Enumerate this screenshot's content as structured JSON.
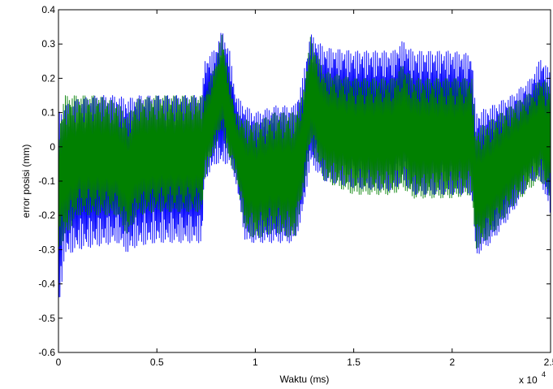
{
  "chart_data": {
    "type": "line",
    "title": "",
    "xlabel": "Waktu (ms)",
    "ylabel": "error posisi (mm)",
    "x_exponent_label": "x 10",
    "x_exponent_power": "4",
    "xlim": [
      0,
      25000
    ],
    "ylim": [
      -0.6,
      0.4
    ],
    "grid": false,
    "legend": "none",
    "x_ticks": [
      0,
      5000,
      10000,
      15000,
      20000,
      25000
    ],
    "x_tick_labels": [
      "0",
      "0.5",
      "1",
      "1.5",
      "2",
      "2.5"
    ],
    "y_ticks": [
      -0.6,
      -0.5,
      -0.4,
      -0.3,
      -0.2,
      -0.1,
      0,
      0.1,
      0.2,
      0.3,
      0.4
    ],
    "y_tick_labels": [
      "-0.6",
      "-0.5",
      "-0.4",
      "-0.3",
      "-0.2",
      "-0.1",
      "0",
      "0.1",
      "0.2",
      "0.3",
      "0.4"
    ],
    "series": [
      {
        "color": "#0000ff",
        "envelope": [
          [
            0,
            -0.5,
            0.1
          ],
          [
            300,
            -0.32,
            0.12
          ],
          [
            1000,
            -0.3,
            0.14
          ],
          [
            2000,
            -0.29,
            0.15
          ],
          [
            3000,
            -0.28,
            0.15
          ],
          [
            3500,
            -0.31,
            0.14
          ],
          [
            4000,
            -0.29,
            0.15
          ],
          [
            5000,
            -0.28,
            0.15
          ],
          [
            6500,
            -0.28,
            0.15
          ],
          [
            7300,
            -0.28,
            0.15
          ],
          [
            7400,
            -0.1,
            0.25
          ],
          [
            8000,
            -0.05,
            0.29
          ],
          [
            8300,
            -0.05,
            0.34
          ],
          [
            8700,
            -0.05,
            0.28
          ],
          [
            9000,
            -0.1,
            0.15
          ],
          [
            9500,
            -0.28,
            0.12
          ],
          [
            10000,
            -0.28,
            0.1
          ],
          [
            11000,
            -0.28,
            0.12
          ],
          [
            12000,
            -0.28,
            0.12
          ],
          [
            12400,
            -0.2,
            0.2
          ],
          [
            12800,
            -0.05,
            0.33
          ],
          [
            13500,
            -0.1,
            0.29
          ],
          [
            15000,
            -0.12,
            0.28
          ],
          [
            17000,
            -0.13,
            0.28
          ],
          [
            17500,
            -0.1,
            0.31
          ],
          [
            18000,
            -0.14,
            0.28
          ],
          [
            20000,
            -0.14,
            0.28
          ],
          [
            21000,
            -0.14,
            0.27
          ],
          [
            21200,
            -0.32,
            0.1
          ],
          [
            22000,
            -0.28,
            0.12
          ],
          [
            23000,
            -0.2,
            0.15
          ],
          [
            24000,
            -0.1,
            0.2
          ],
          [
            24500,
            -0.1,
            0.26
          ],
          [
            25000,
            -0.2,
            0.22
          ]
        ]
      },
      {
        "color": "#008000",
        "envelope": [
          [
            0,
            -0.3,
            0.05
          ],
          [
            300,
            -0.27,
            0.15
          ],
          [
            1000,
            -0.2,
            0.15
          ],
          [
            2000,
            -0.2,
            0.15
          ],
          [
            3000,
            -0.2,
            0.13
          ],
          [
            3500,
            -0.26,
            0.09
          ],
          [
            4000,
            -0.2,
            0.14
          ],
          [
            5000,
            -0.19,
            0.15
          ],
          [
            7300,
            -0.19,
            0.15
          ],
          [
            7400,
            -0.1,
            0.15
          ],
          [
            8000,
            0.0,
            0.25
          ],
          [
            8300,
            0.05,
            0.33
          ],
          [
            8700,
            -0.05,
            0.2
          ],
          [
            9000,
            -0.08,
            0.1
          ],
          [
            9500,
            -0.25,
            0.08
          ],
          [
            10000,
            -0.27,
            0.07
          ],
          [
            11000,
            -0.25,
            0.1
          ],
          [
            12000,
            -0.27,
            0.1
          ],
          [
            12400,
            -0.15,
            0.15
          ],
          [
            12800,
            0.0,
            0.32
          ],
          [
            13500,
            -0.1,
            0.22
          ],
          [
            15000,
            -0.14,
            0.2
          ],
          [
            17000,
            -0.14,
            0.2
          ],
          [
            17500,
            -0.12,
            0.24
          ],
          [
            18000,
            -0.15,
            0.2
          ],
          [
            20000,
            -0.15,
            0.2
          ],
          [
            21000,
            -0.14,
            0.2
          ],
          [
            21200,
            -0.3,
            0.05
          ],
          [
            22000,
            -0.26,
            0.08
          ],
          [
            23000,
            -0.18,
            0.12
          ],
          [
            24000,
            -0.12,
            0.16
          ],
          [
            24500,
            -0.1,
            0.2
          ],
          [
            25000,
            -0.15,
            0.18
          ]
        ]
      }
    ]
  }
}
